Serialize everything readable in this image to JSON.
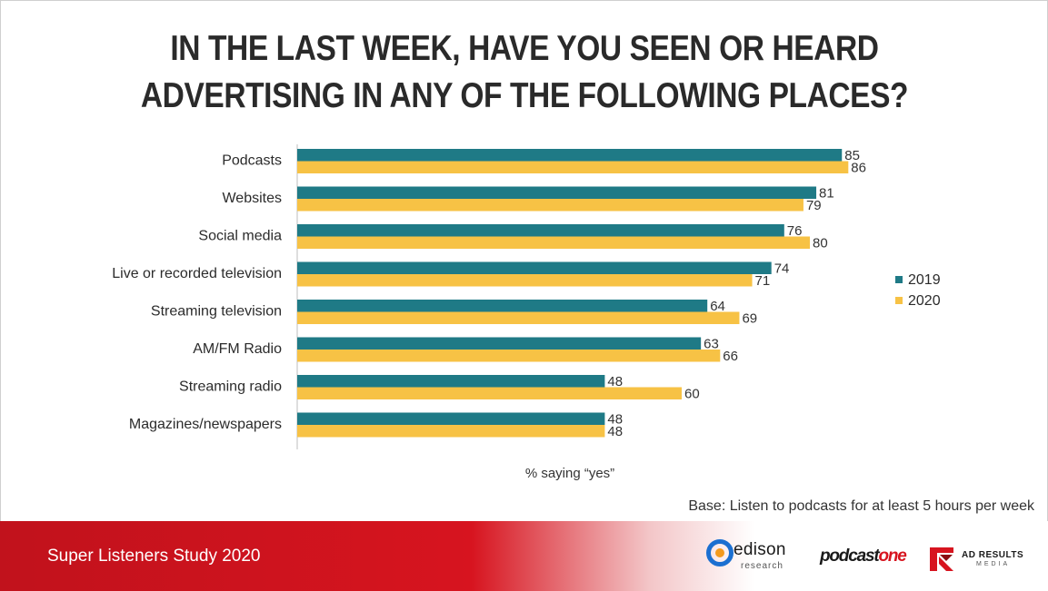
{
  "title_lines": [
    "In the last week, have you seen or heard",
    "advertising in any of the following places?"
  ],
  "chart_data": {
    "type": "bar",
    "orientation": "horizontal",
    "categories": [
      "Podcasts",
      "Websites",
      "Social media",
      "Live or recorded television",
      "Streaming television",
      "AM/FM Radio",
      "Streaming radio",
      "Magazines/newspapers"
    ],
    "series": [
      {
        "name": "2019",
        "values": [
          85,
          81,
          76,
          74,
          64,
          63,
          48,
          48
        ],
        "color": "#1f7a86"
      },
      {
        "name": "2020",
        "values": [
          86,
          79,
          80,
          71,
          69,
          66,
          60,
          48
        ],
        "color": "#f7c245"
      }
    ],
    "xlabel": "% saying “yes”",
    "xlim": [
      0,
      100
    ],
    "grid": false,
    "legend_position": "right"
  },
  "base_note": "Base: Listen to podcasts for at least 5 hours per week",
  "footer": {
    "study_title": "Super Listeners Study 2020",
    "edison_word": "edison",
    "edison_sub": "research",
    "podcastone_a": "podcast",
    "podcastone_b": "one",
    "arm_top": "AD RESULTS",
    "arm_bottom": "MEDIA"
  }
}
